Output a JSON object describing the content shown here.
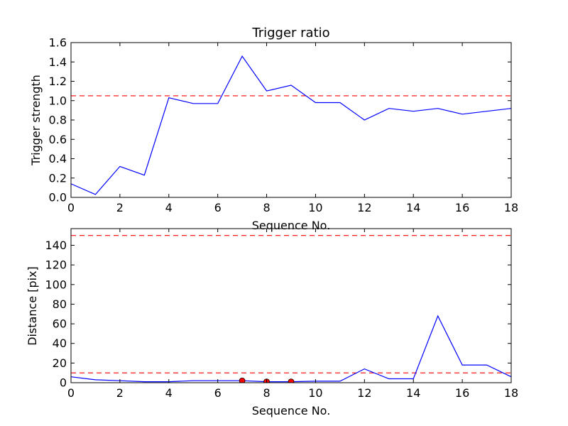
{
  "chart_data": [
    {
      "type": "line",
      "title": "Trigger ratio",
      "xlabel": "Sequence No.",
      "ylabel": "Trigger strength",
      "xlim": [
        0,
        18
      ],
      "ylim": [
        0,
        1.6
      ],
      "xticks": [
        "0",
        "2",
        "4",
        "6",
        "8",
        "10",
        "12",
        "14",
        "16",
        "18"
      ],
      "yticks": [
        "0.0",
        "0.2",
        "0.4",
        "0.6",
        "0.8",
        "1.0",
        "1.2",
        "1.4",
        "1.6"
      ],
      "grid": false,
      "series": [
        {
          "color": "#0000ff",
          "x": [
            0,
            1,
            2,
            3,
            4,
            5,
            6,
            7,
            8,
            9,
            10,
            11,
            12,
            13,
            14,
            15,
            16,
            17,
            18
          ],
          "values": [
            0.14,
            0.03,
            0.32,
            0.23,
            1.03,
            0.97,
            0.97,
            1.46,
            1.1,
            1.16,
            0.98,
            0.98,
            0.8,
            0.92,
            0.89,
            0.92,
            0.86,
            0.89,
            0.92
          ]
        }
      ],
      "hlines": [
        {
          "y": 1.05,
          "color": "#ff0000",
          "style": "dashed"
        }
      ],
      "markers": []
    },
    {
      "type": "line",
      "title": "",
      "xlabel": "Sequence No.",
      "ylabel": "Distance [pix]",
      "xlim": [
        0,
        18
      ],
      "ylim": [
        0,
        157
      ],
      "xticks": [
        "0",
        "2",
        "4",
        "6",
        "8",
        "10",
        "12",
        "14",
        "16",
        "18"
      ],
      "yticks": [
        "0",
        "20",
        "40",
        "60",
        "80",
        "100",
        "120",
        "140"
      ],
      "grid": false,
      "series": [
        {
          "color": "#0000ff",
          "x": [
            0,
            1,
            2,
            3,
            4,
            5,
            6,
            7,
            8,
            9,
            10,
            11,
            12,
            13,
            14,
            15,
            16,
            17,
            18
          ],
          "values": [
            6,
            3,
            2,
            1,
            1,
            2,
            2,
            2,
            1,
            1,
            1.5,
            1.5,
            14,
            4,
            4,
            68,
            18,
            18,
            6
          ]
        }
      ],
      "hlines": [
        {
          "y": 150,
          "color": "#ff0000",
          "style": "dashed"
        },
        {
          "y": 10,
          "color": "#ff0000",
          "style": "dashed"
        }
      ],
      "markers": [
        {
          "x": 7,
          "y": 2,
          "color": "#ff0000"
        },
        {
          "x": 8,
          "y": 1,
          "color": "#ff0000"
        },
        {
          "x": 9,
          "y": 1,
          "color": "#ff0000"
        }
      ]
    }
  ]
}
